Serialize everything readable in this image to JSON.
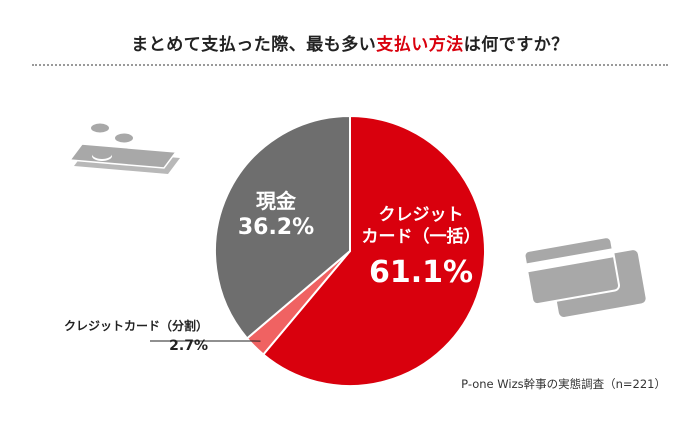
{
  "title": {
    "before": "まとめて支払った際、最も多い",
    "highlight": "支払い方法",
    "after": "は何ですか？"
  },
  "chart_data": {
    "type": "pie",
    "slices": [
      {
        "label": "クレジットカード（一括）",
        "value": 61.1,
        "value_label": "61.1%",
        "color": "#d9000d"
      },
      {
        "label": "クレジットカード（分割）",
        "value": 2.7,
        "value_label": "2.7%",
        "color": "#f06262"
      },
      {
        "label": "現金",
        "value": 36.2,
        "value_label": "36.2%",
        "color": "#6e6e6e"
      }
    ],
    "labels": {
      "lump_line1": "クレジット",
      "lump_line2": "カード（一括）",
      "installment": "クレジットカード（分割）",
      "cash": "現金"
    }
  },
  "source": "P-one Wizs幹事の実態調査（n=221）",
  "icons": [
    "cash-icon",
    "credit-card-icon"
  ],
  "colors": {
    "accent": "#d9000d",
    "cash": "#6e6e6e",
    "installment": "#f06262",
    "icon_gray": "#a8a8a8"
  }
}
